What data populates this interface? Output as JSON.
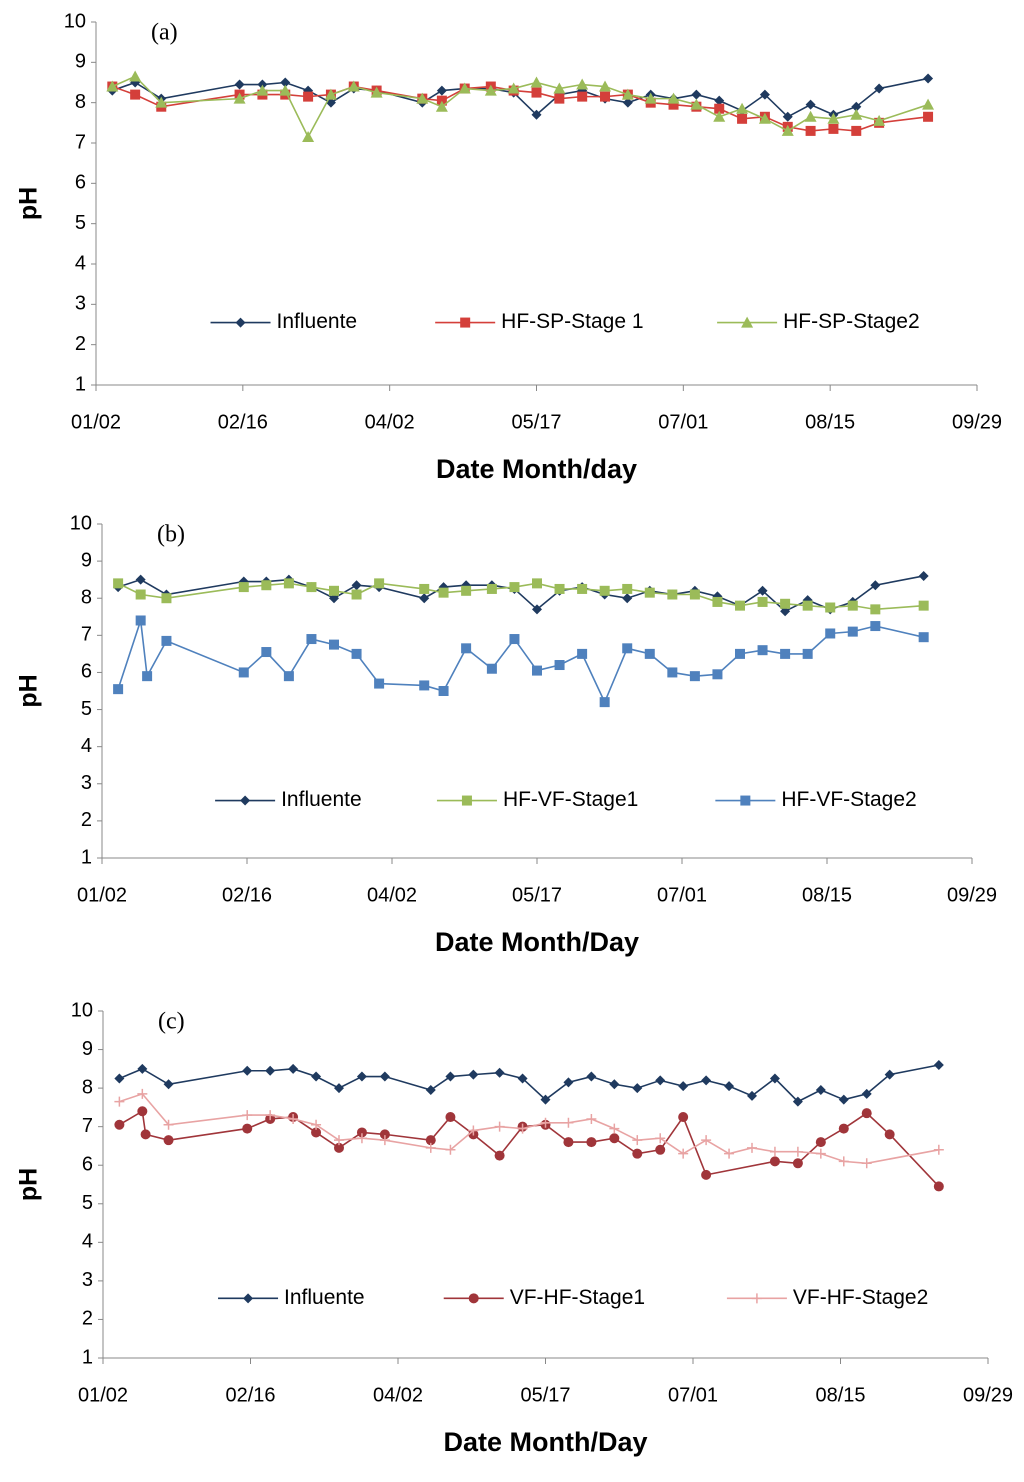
{
  "chart_data": [
    {
      "type": "line",
      "annotation": "(a)",
      "xlabel": "Date Month/day",
      "ylabel": "pH",
      "xlim": [
        "01/02",
        "09/29"
      ],
      "xticks": [
        "01/02",
        "02/16",
        "04/02",
        "05/17",
        "07/01",
        "08/15",
        "09/29"
      ],
      "ylim": [
        1,
        10
      ],
      "yticks": [
        1,
        2,
        3,
        4,
        5,
        6,
        7,
        8,
        9,
        10
      ],
      "grid": false,
      "legend": "bottom",
      "series": [
        {
          "name": "Influente",
          "color": "#1f3a5f",
          "marker": "diamond",
          "x": [
            "01/07",
            "01/14",
            "01/22",
            "02/15",
            "02/22",
            "03/01",
            "03/08",
            "03/15",
            "03/22",
            "03/29",
            "04/12",
            "04/18",
            "04/25",
            "05/03",
            "05/10",
            "05/17",
            "05/24",
            "05/31",
            "06/07",
            "06/14",
            "06/21",
            "06/28",
            "07/05",
            "07/12",
            "07/19",
            "07/26",
            "08/02",
            "08/09",
            "08/16",
            "08/23",
            "08/30",
            "09/14"
          ],
          "values": [
            8.3,
            8.5,
            8.1,
            8.45,
            8.45,
            8.5,
            8.3,
            8.0,
            8.35,
            8.3,
            8.0,
            8.3,
            8.35,
            8.35,
            8.25,
            7.7,
            8.2,
            8.3,
            8.1,
            8.0,
            8.2,
            8.1,
            8.2,
            8.05,
            7.8,
            8.2,
            7.65,
            7.95,
            7.7,
            7.9,
            8.35,
            8.6
          ]
        },
        {
          "name": "HF-SP-Stage 1",
          "color": "#d43f3a",
          "marker": "square",
          "x": [
            "01/07",
            "01/14",
            "01/22",
            "02/15",
            "02/22",
            "03/01",
            "03/08",
            "03/15",
            "03/22",
            "03/29",
            "04/12",
            "04/18",
            "04/25",
            "05/03",
            "05/10",
            "05/17",
            "05/24",
            "05/31",
            "06/07",
            "06/14",
            "06/21",
            "06/28",
            "07/05",
            "07/12",
            "07/19",
            "07/26",
            "08/02",
            "08/09",
            "08/16",
            "08/23",
            "08/30",
            "09/14"
          ],
          "values": [
            8.4,
            8.2,
            7.9,
            8.2,
            8.2,
            8.2,
            8.15,
            8.2,
            8.4,
            8.3,
            8.1,
            8.05,
            8.35,
            8.4,
            8.3,
            8.25,
            8.1,
            8.15,
            8.15,
            8.2,
            8.0,
            7.95,
            7.9,
            7.85,
            7.6,
            7.65,
            7.4,
            7.3,
            7.35,
            7.3,
            7.5,
            7.65
          ]
        },
        {
          "name": "HF-SP-Stage2",
          "color": "#9bbb59",
          "marker": "triangle",
          "x": [
            "01/07",
            "01/14",
            "01/22",
            "02/15",
            "02/22",
            "03/01",
            "03/08",
            "03/15",
            "03/22",
            "03/29",
            "04/12",
            "04/18",
            "04/25",
            "05/03",
            "05/10",
            "05/17",
            "05/24",
            "05/31",
            "06/07",
            "06/14",
            "06/21",
            "06/28",
            "07/05",
            "07/12",
            "07/19",
            "07/26",
            "08/02",
            "08/09",
            "08/16",
            "08/23",
            "08/30",
            "09/14"
          ],
          "values": [
            8.4,
            8.65,
            8.0,
            8.1,
            8.3,
            8.3,
            7.15,
            8.2,
            8.4,
            8.25,
            8.1,
            7.9,
            8.35,
            8.3,
            8.35,
            8.5,
            8.35,
            8.45,
            8.4,
            8.2,
            8.1,
            8.1,
            7.95,
            7.65,
            7.85,
            7.6,
            7.3,
            7.65,
            7.6,
            7.7,
            7.55,
            7.95
          ]
        }
      ]
    },
    {
      "type": "line",
      "annotation": "(b)",
      "xlabel": "Date Month/Day",
      "ylabel": "pH",
      "xlim": [
        "01/02",
        "09/29"
      ],
      "xticks": [
        "01/02",
        "02/16",
        "04/02",
        "05/17",
        "07/01",
        "08/15",
        "09/29"
      ],
      "ylim": [
        1,
        10
      ],
      "yticks": [
        1,
        2,
        3,
        4,
        5,
        6,
        7,
        8,
        9,
        10
      ],
      "grid": false,
      "legend": "bottom",
      "series": [
        {
          "name": "Influente",
          "color": "#1f3a5f",
          "marker": "diamond",
          "x": [
            "01/07",
            "01/14",
            "01/22",
            "02/15",
            "02/22",
            "03/01",
            "03/08",
            "03/15",
            "03/22",
            "03/29",
            "04/12",
            "04/18",
            "04/25",
            "05/03",
            "05/10",
            "05/17",
            "05/24",
            "05/31",
            "06/07",
            "06/14",
            "06/21",
            "06/28",
            "07/05",
            "07/12",
            "07/19",
            "07/26",
            "08/02",
            "08/09",
            "08/16",
            "08/23",
            "08/30",
            "09/14"
          ],
          "values": [
            8.3,
            8.5,
            8.1,
            8.45,
            8.45,
            8.5,
            8.3,
            8.0,
            8.35,
            8.3,
            8.0,
            8.3,
            8.35,
            8.35,
            8.25,
            7.7,
            8.2,
            8.3,
            8.1,
            8.0,
            8.2,
            8.1,
            8.2,
            8.05,
            7.8,
            8.2,
            7.65,
            7.95,
            7.7,
            7.9,
            8.35,
            8.6
          ]
        },
        {
          "name": "HF-VF-Stage1",
          "color": "#9bbb59",
          "marker": "square",
          "x": [
            "01/07",
            "01/14",
            "01/22",
            "02/15",
            "02/22",
            "03/01",
            "03/08",
            "03/15",
            "03/22",
            "03/29",
            "04/12",
            "04/18",
            "04/25",
            "05/03",
            "05/10",
            "05/17",
            "05/24",
            "05/31",
            "06/07",
            "06/14",
            "06/21",
            "06/28",
            "07/05",
            "07/12",
            "07/19",
            "07/26",
            "08/02",
            "08/09",
            "08/16",
            "08/23",
            "08/30",
            "09/14"
          ],
          "values": [
            8.4,
            8.1,
            8.0,
            8.3,
            8.35,
            8.4,
            8.3,
            8.2,
            8.1,
            8.4,
            8.25,
            8.15,
            8.2,
            8.25,
            8.3,
            8.4,
            8.25,
            8.25,
            8.2,
            8.25,
            8.15,
            8.1,
            8.1,
            7.9,
            7.8,
            7.9,
            7.85,
            7.8,
            7.75,
            7.8,
            7.7,
            7.8
          ]
        },
        {
          "name": "HF-VF-Stage2",
          "color": "#4f81bd",
          "marker": "square",
          "x": [
            "01/07",
            "01/14",
            "01/16",
            "01/22",
            "02/15",
            "02/22",
            "03/01",
            "03/08",
            "03/15",
            "03/22",
            "03/29",
            "04/12",
            "04/18",
            "04/25",
            "05/03",
            "05/10",
            "05/17",
            "05/24",
            "05/31",
            "06/07",
            "06/14",
            "06/21",
            "06/28",
            "07/05",
            "07/12",
            "07/19",
            "07/26",
            "08/02",
            "08/09",
            "08/16",
            "08/23",
            "08/30",
            "09/14"
          ],
          "values": [
            5.55,
            7.4,
            5.9,
            6.85,
            6.0,
            6.55,
            5.9,
            6.9,
            6.75,
            6.5,
            5.7,
            5.65,
            5.5,
            6.65,
            6.1,
            6.9,
            6.05,
            6.2,
            6.5,
            5.2,
            6.65,
            6.5,
            6.0,
            5.9,
            5.95,
            6.5,
            6.6,
            6.5,
            6.5,
            7.05,
            7.1,
            7.25,
            6.95
          ]
        }
      ]
    },
    {
      "type": "line",
      "annotation": "(c)",
      "xlabel": "Date Month/Day",
      "ylabel": "pH",
      "xlim": [
        "01/02",
        "09/29"
      ],
      "xticks": [
        "01/02",
        "02/16",
        "04/02",
        "05/17",
        "07/01",
        "08/15",
        "09/29"
      ],
      "ylim": [
        1,
        10
      ],
      "yticks": [
        1,
        2,
        3,
        4,
        5,
        6,
        7,
        8,
        9,
        10
      ],
      "grid": false,
      "legend": "bottom",
      "series": [
        {
          "name": "Influente",
          "color": "#1f3a5f",
          "marker": "diamond",
          "x": [
            "01/07",
            "01/14",
            "01/22",
            "02/15",
            "02/22",
            "03/01",
            "03/08",
            "03/15",
            "03/22",
            "03/29",
            "04/12",
            "04/18",
            "04/25",
            "05/03",
            "05/10",
            "05/17",
            "05/24",
            "05/31",
            "06/07",
            "06/14",
            "06/21",
            "06/28",
            "07/05",
            "07/12",
            "07/19",
            "07/26",
            "08/02",
            "08/09",
            "08/16",
            "08/23",
            "08/30",
            "09/14"
          ],
          "values": [
            8.25,
            8.5,
            8.1,
            8.45,
            8.45,
            8.5,
            8.3,
            8.0,
            8.3,
            8.3,
            7.95,
            8.3,
            8.35,
            8.4,
            8.25,
            7.7,
            8.15,
            8.3,
            8.1,
            8.0,
            8.2,
            8.05,
            8.2,
            8.05,
            7.8,
            8.25,
            7.65,
            7.95,
            7.7,
            7.85,
            8.35,
            8.6
          ]
        },
        {
          "name": "VF-HF-Stage1",
          "color": "#a0353a",
          "marker": "circle",
          "x": [
            "01/07",
            "01/14",
            "01/15",
            "01/22",
            "02/15",
            "02/22",
            "03/01",
            "03/08",
            "03/15",
            "03/22",
            "03/29",
            "04/12",
            "04/18",
            "04/25",
            "05/03",
            "05/10",
            "05/17",
            "05/24",
            "05/31",
            "06/07",
            "06/14",
            "06/21",
            "06/28",
            "07/05",
            "07/26",
            "08/02",
            "08/09",
            "08/16",
            "08/23",
            "08/30",
            "09/14"
          ],
          "values": [
            7.05,
            7.4,
            6.8,
            6.65,
            6.95,
            7.2,
            7.25,
            6.85,
            6.45,
            6.85,
            6.8,
            6.65,
            7.25,
            6.8,
            6.25,
            7.0,
            7.05,
            6.6,
            6.6,
            6.7,
            6.3,
            6.4,
            7.25,
            5.75,
            6.1,
            6.05,
            6.6,
            6.95,
            7.35,
            6.8,
            5.45
          ]
        },
        {
          "name": "VF-HF-Stage2",
          "color": "#e8a3a3",
          "marker": "plus",
          "x": [
            "01/07",
            "01/14",
            "01/22",
            "02/15",
            "02/22",
            "03/01",
            "03/08",
            "03/15",
            "03/22",
            "03/29",
            "04/12",
            "04/18",
            "04/25",
            "05/03",
            "05/10",
            "05/17",
            "05/24",
            "05/31",
            "06/07",
            "06/14",
            "06/21",
            "06/28",
            "07/05",
            "07/12",
            "07/19",
            "07/26",
            "08/02",
            "08/09",
            "08/16",
            "08/23",
            "09/14"
          ],
          "values": [
            7.65,
            7.85,
            7.05,
            7.3,
            7.3,
            7.2,
            7.05,
            6.65,
            6.7,
            6.65,
            6.45,
            6.4,
            6.9,
            7.0,
            6.95,
            7.1,
            7.1,
            7.2,
            6.95,
            6.65,
            6.7,
            6.3,
            6.65,
            6.3,
            6.45,
            6.35,
            6.35,
            6.3,
            6.1,
            6.05,
            6.4
          ]
        }
      ]
    }
  ]
}
